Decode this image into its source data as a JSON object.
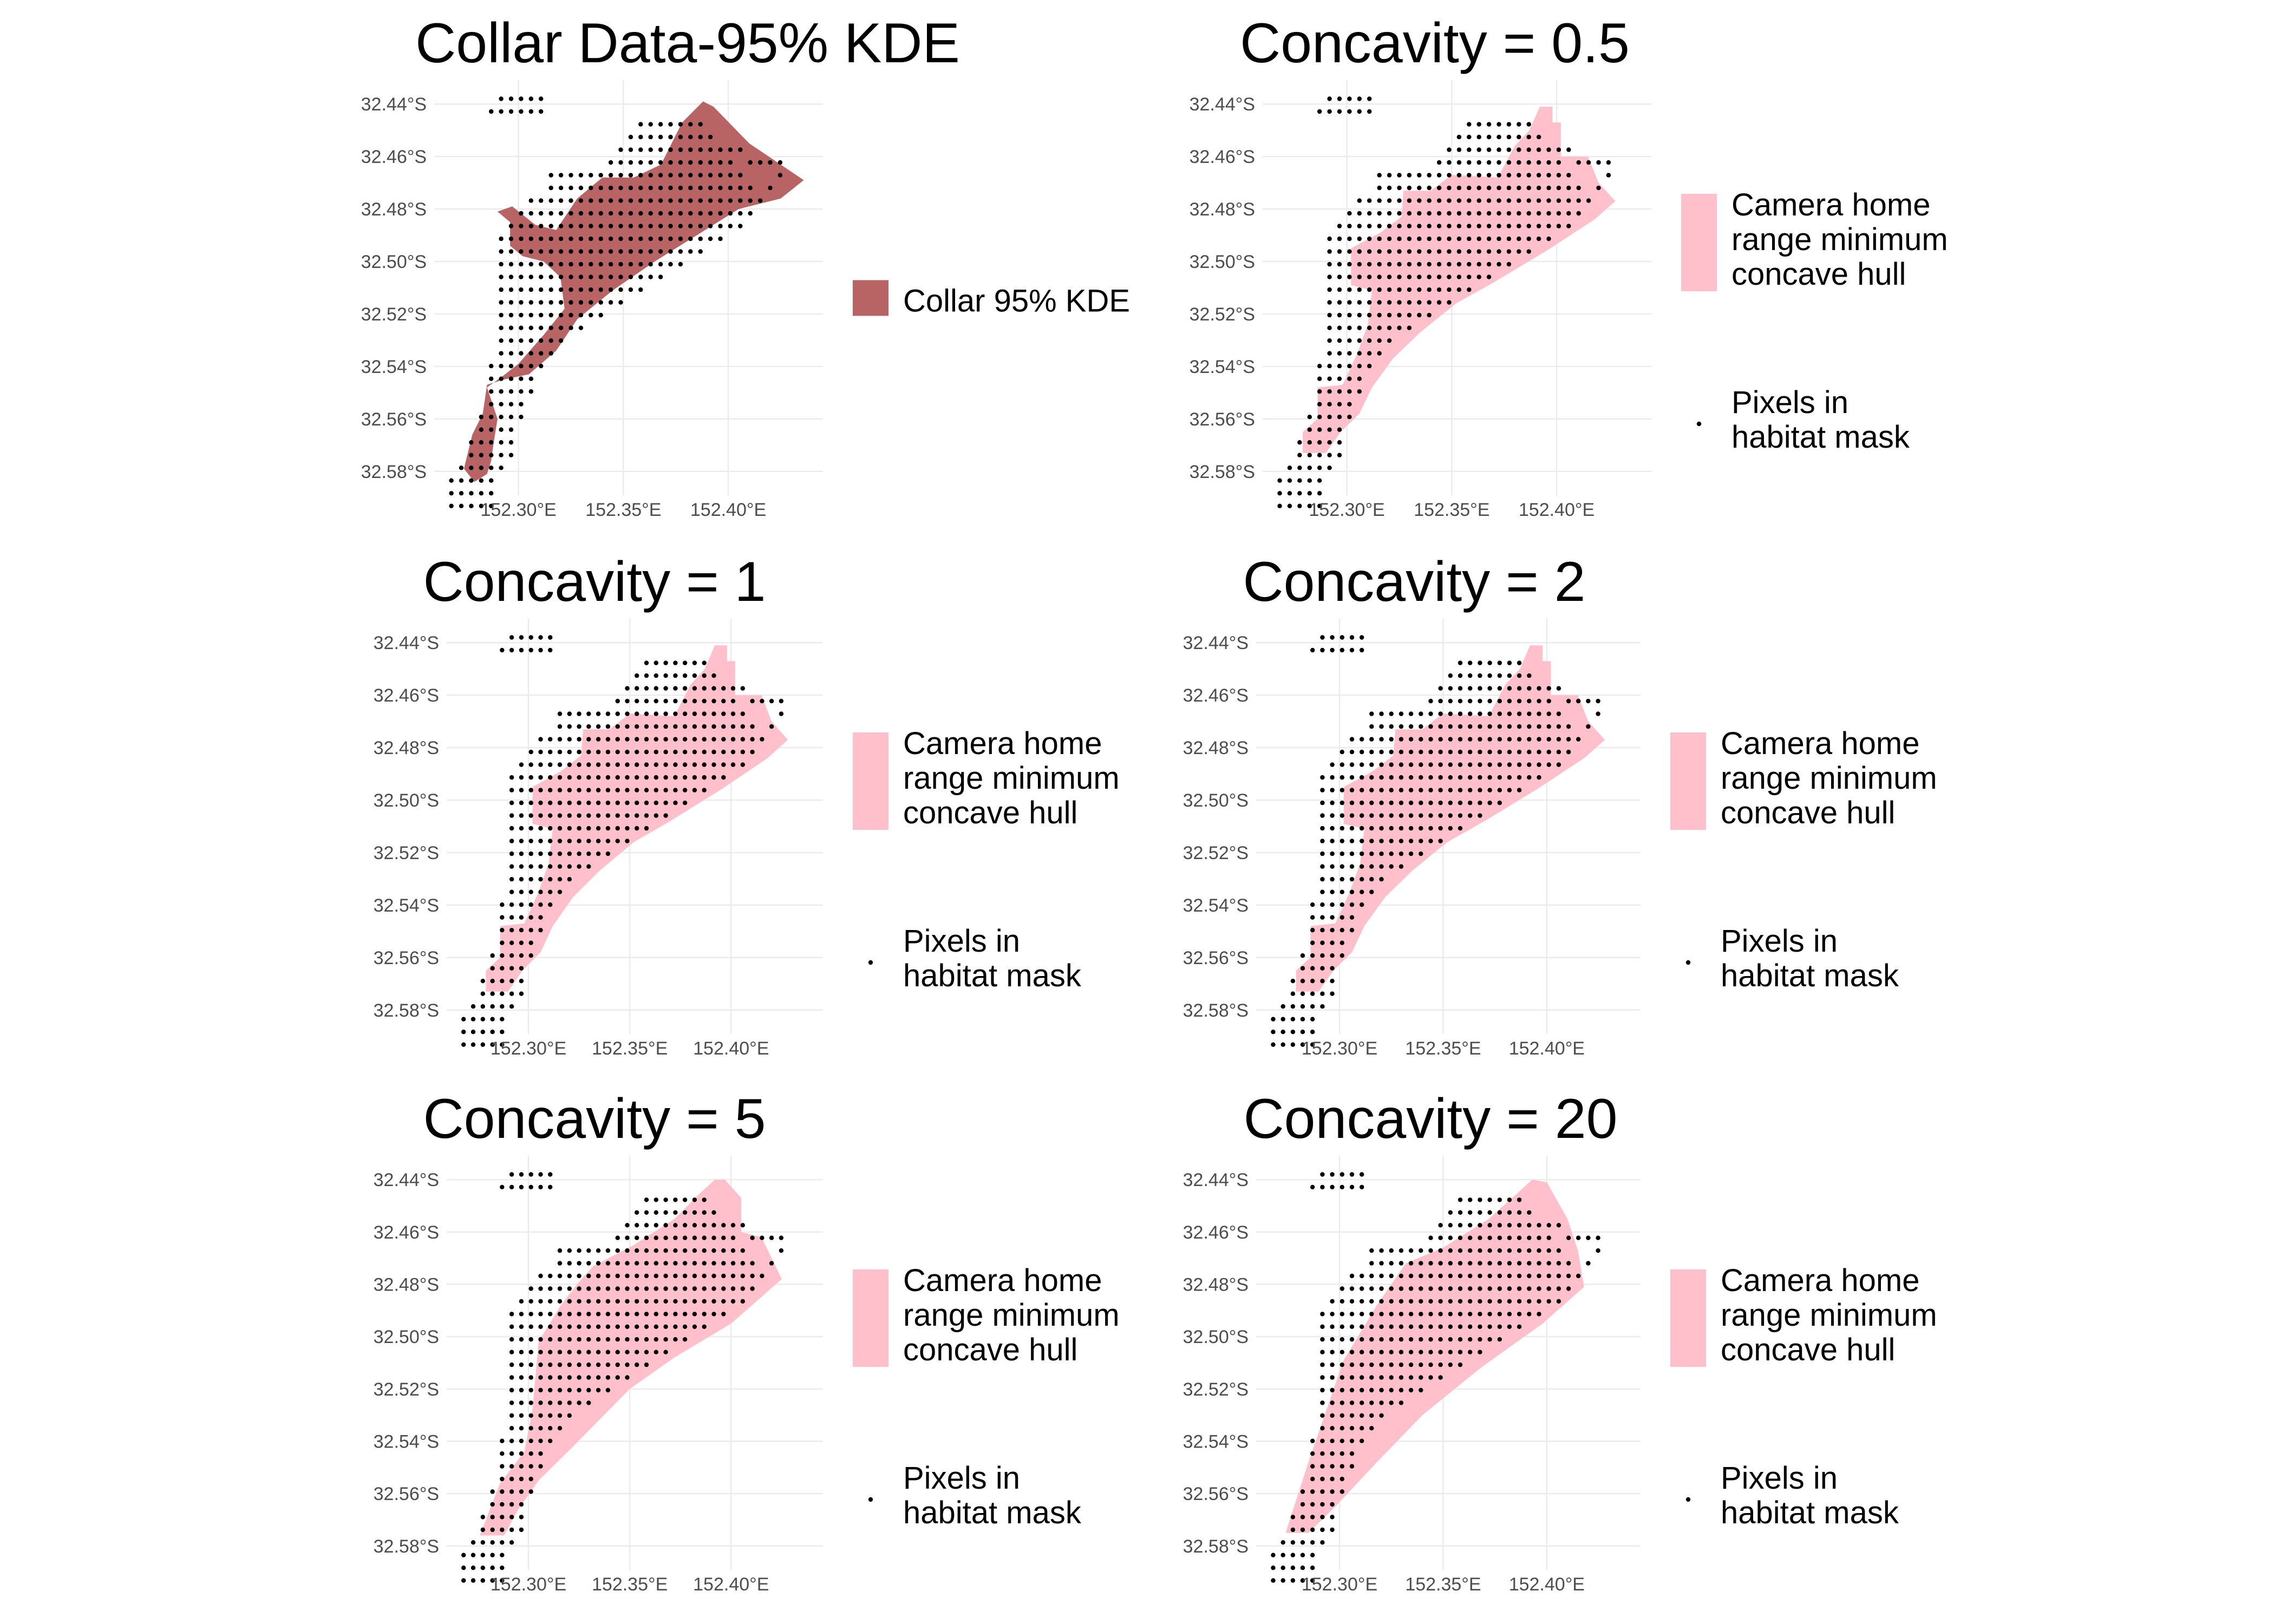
{
  "figure": {
    "x_ticks": [
      "152.30°E",
      "152.35°E",
      "152.40°E"
    ],
    "y_ticks": [
      "32.44°S",
      "32.46°S",
      "32.48°S",
      "32.50°S",
      "32.52°S",
      "32.54°S",
      "32.56°S",
      "32.58°S"
    ]
  },
  "legend": {
    "collar_label": "Collar 95% KDE",
    "hull_label_lines": [
      "Camera home",
      "range minimum",
      "concave hull"
    ],
    "pixels_label_lines": [
      "Pixels in",
      "habitat mask"
    ]
  },
  "colors": {
    "collar_fill": "#b86464",
    "hull_fill": "#ffc0cb",
    "pixel_dot": "#000000",
    "grid": "#ebebeb"
  },
  "chart_data": [
    {
      "type": "area",
      "title": "Collar Data-95% KDE",
      "fill_series": "Collar 95% KDE",
      "point_series": "Pixels in habitat mask",
      "x_range_deg_east": [
        152.265,
        152.44
      ],
      "y_range_deg_south": [
        32.435,
        32.585
      ],
      "legend_position": "right",
      "grid": true
    },
    {
      "type": "area",
      "title": "Concavity = 0.5",
      "concavity": 0.5,
      "fill_series": "Camera home range minimum concave hull",
      "point_series": "Pixels in habitat mask",
      "x_range_deg_east": [
        152.265,
        152.44
      ],
      "y_range_deg_south": [
        32.435,
        32.585
      ],
      "legend_position": "right",
      "grid": true
    },
    {
      "type": "area",
      "title": "Concavity = 1",
      "concavity": 1,
      "fill_series": "Camera home range minimum concave hull",
      "point_series": "Pixels in habitat mask",
      "x_range_deg_east": [
        152.265,
        152.44
      ],
      "y_range_deg_south": [
        32.435,
        32.585
      ],
      "legend_position": "right",
      "grid": true
    },
    {
      "type": "area",
      "title": "Concavity = 2",
      "concavity": 2,
      "fill_series": "Camera home range minimum concave hull",
      "point_series": "Pixels in habitat mask",
      "x_range_deg_east": [
        152.265,
        152.44
      ],
      "y_range_deg_south": [
        32.435,
        32.585
      ],
      "legend_position": "right",
      "grid": true
    },
    {
      "type": "area",
      "title": "Concavity = 5",
      "concavity": 5,
      "fill_series": "Camera home range minimum concave hull",
      "point_series": "Pixels in habitat mask",
      "x_range_deg_east": [
        152.265,
        152.44
      ],
      "y_range_deg_south": [
        32.435,
        32.585
      ],
      "legend_position": "right",
      "grid": true
    },
    {
      "type": "area",
      "title": "Concavity = 20",
      "concavity": 20,
      "fill_series": "Camera home range minimum concave hull",
      "point_series": "Pixels in habitat mask",
      "x_range_deg_east": [
        152.265,
        152.44
      ],
      "y_range_deg_south": [
        32.435,
        32.585
      ],
      "legend_position": "right",
      "grid": true
    }
  ]
}
